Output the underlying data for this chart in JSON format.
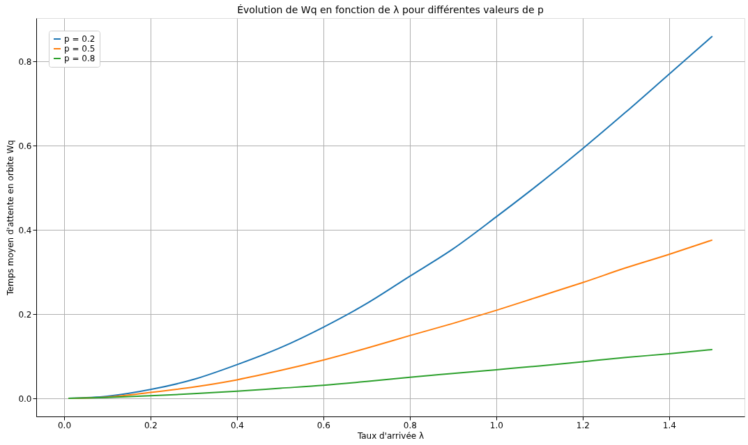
{
  "chart_data": {
    "type": "line",
    "title": "Évolution de Wq en fonction de λ pour différentes valeurs de p",
    "xlabel": "Taux d'arrivée λ",
    "ylabel": "Temps moyen d'attente en orbite Wq",
    "x": [
      0.01,
      0.1,
      0.2,
      0.3,
      0.4,
      0.5,
      0.6,
      0.7,
      0.8,
      0.9,
      1.0,
      1.1,
      1.2,
      1.3,
      1.4,
      1.5
    ],
    "series": [
      {
        "name": "p = 0.2",
        "color": "#1f77b4",
        "values": [
          0.0,
          0.005,
          0.021,
          0.045,
          0.08,
          0.12,
          0.169,
          0.225,
          0.29,
          0.355,
          0.431,
          0.51,
          0.593,
          0.68,
          0.77,
          0.86
        ]
      },
      {
        "name": "p = 0.5",
        "color": "#ff7f0e",
        "values": [
          0.0,
          0.003,
          0.014,
          0.027,
          0.044,
          0.066,
          0.091,
          0.119,
          0.149,
          0.178,
          0.209,
          0.242,
          0.275,
          0.31,
          0.342,
          0.376
        ]
      },
      {
        "name": "p = 0.8",
        "color": "#2ca02c",
        "values": [
          0.0,
          0.002,
          0.006,
          0.011,
          0.017,
          0.024,
          0.031,
          0.04,
          0.05,
          0.059,
          0.068,
          0.077,
          0.087,
          0.097,
          0.106,
          0.116
        ]
      }
    ],
    "xlim": [
      -0.0645,
      1.5745
    ],
    "xticks": [
      {
        "value": 0,
        "label": "0.0"
      },
      0.2,
      0.4,
      0.6,
      0.8,
      {
        "value": 1,
        "label": "1.0"
      },
      1.2,
      1.4
    ],
    "ylim": [
      -0.043,
      0.903
    ],
    "yticks": [
      {
        "value": 0,
        "label": "0.0"
      },
      0.2,
      0.4,
      0.6,
      0.8
    ],
    "grid": true,
    "legend": "top left",
    "marker": "none",
    "line_style": "solid"
  }
}
